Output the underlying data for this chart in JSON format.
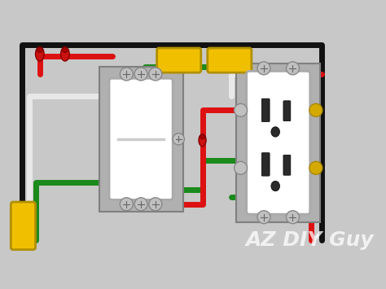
{
  "bg_color": "#c8c8c8",
  "title_text": "AZ DIY Guy",
  "title_color": "#ffffff",
  "title_fontsize": 18,
  "wire_colors": {
    "black": "#111111",
    "white": "#e8e8e8",
    "red": "#dd1111",
    "green": "#1a8a1a",
    "yellow": "#f0c000"
  },
  "fig_width": 4.74,
  "fig_height": 3.55
}
